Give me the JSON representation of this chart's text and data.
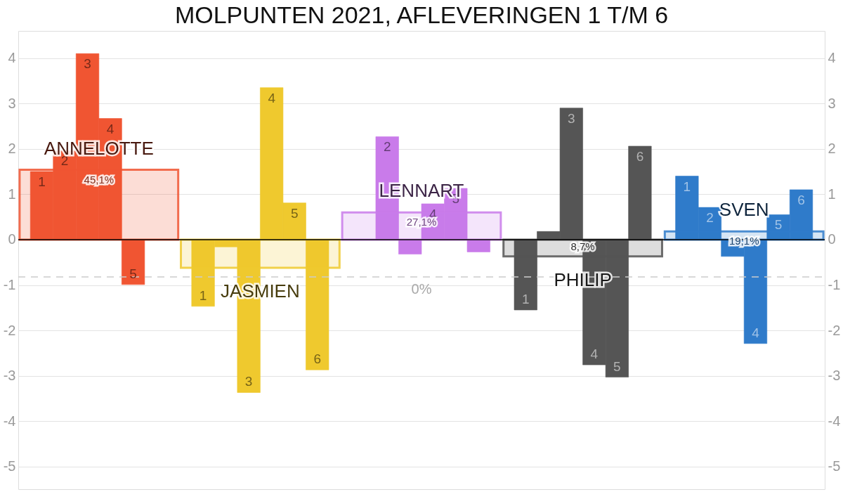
{
  "chart_data": {
    "type": "bar",
    "title": "MOLPUNTEN 2021, AFLEVERINGEN 1 T/M 6",
    "categories": [
      "ANNELOTTE",
      "JASMIEN",
      "LENNART",
      "PHILIP",
      "SVEN"
    ],
    "series": [
      {
        "type": "bar",
        "colors": [
          "#f05532",
          "#efc92e",
          "#c97bea",
          "#555555",
          "#2f7bca"
        ],
        "values": [
          1.54,
          -0.62,
          0.6,
          -0.37,
          0.18
        ]
      },
      {
        "type": "bar",
        "name": "1",
        "colors": [
          "#f05532",
          "#efc92e",
          "#c97bea",
          "#555555",
          "#2f7bca"
        ],
        "values": [
          1.5,
          -1.47,
          0,
          -1.55,
          1.4
        ]
      },
      {
        "type": "bar",
        "name": "2",
        "colors": [
          "#f05532",
          "#efc92e",
          "#c97bea",
          "#555555",
          "#2f7bca"
        ],
        "values": [
          1.96,
          -0.16,
          2.27,
          0.18,
          0.71
        ]
      },
      {
        "type": "bar",
        "name": "3",
        "colors": [
          "#f05532",
          "#efc92e",
          "#c97bea",
          "#555555",
          "#2f7bca"
        ],
        "values": [
          4.1,
          -3.37,
          -0.32,
          2.9,
          -0.37
        ]
      },
      {
        "type": "bar",
        "name": "4",
        "colors": [
          "#f05532",
          "#efc92e",
          "#c97bea",
          "#555555",
          "#2f7bca"
        ],
        "values": [
          2.67,
          3.35,
          0.79,
          -2.76,
          -2.29
        ]
      },
      {
        "type": "bar",
        "name": "5",
        "colors": [
          "#f05532",
          "#efc92e",
          "#c97bea",
          "#555555",
          "#2f7bca"
        ],
        "values": [
          -0.99,
          0.81,
          1.13,
          -3.03,
          0.55
        ]
      },
      {
        "type": "bar",
        "name": "6",
        "colors": [
          "#f05532",
          "#efc92e",
          "#c97bea",
          "#555555",
          "#2f7bca"
        ],
        "values": [
          0,
          -2.87,
          -0.27,
          2.06,
          1.1
        ]
      }
    ],
    "annotations": [
      {
        "text": "45,1%",
        "x": "ANNELOTTE",
        "y": 1.54
      },
      {
        "text": "27,1%",
        "x": "LENNART",
        "y": 0.6
      },
      {
        "text": "8,7%",
        "x": "PHILIP",
        "y": -0.37
      },
      {
        "text": "19,1%",
        "x": "SVEN",
        "y": 0.18
      },
      "0%"
    ],
    "ref_lines": [
      {
        "axis": "y",
        "value": -0.82,
        "line_style": "dashed",
        "color": "#cccccc"
      }
    ],
    "ylim": [
      -5.5,
      4.6
    ],
    "yticks": [
      -5,
      -4,
      -3,
      -2,
      -1,
      0,
      1,
      2,
      3,
      4
    ],
    "y2lim": [
      -5.5,
      4.6
    ],
    "y2ticks": [
      -5,
      -4,
      -3,
      -2,
      -1,
      0,
      1,
      2,
      3,
      4
    ],
    "grid": "y"
  }
}
